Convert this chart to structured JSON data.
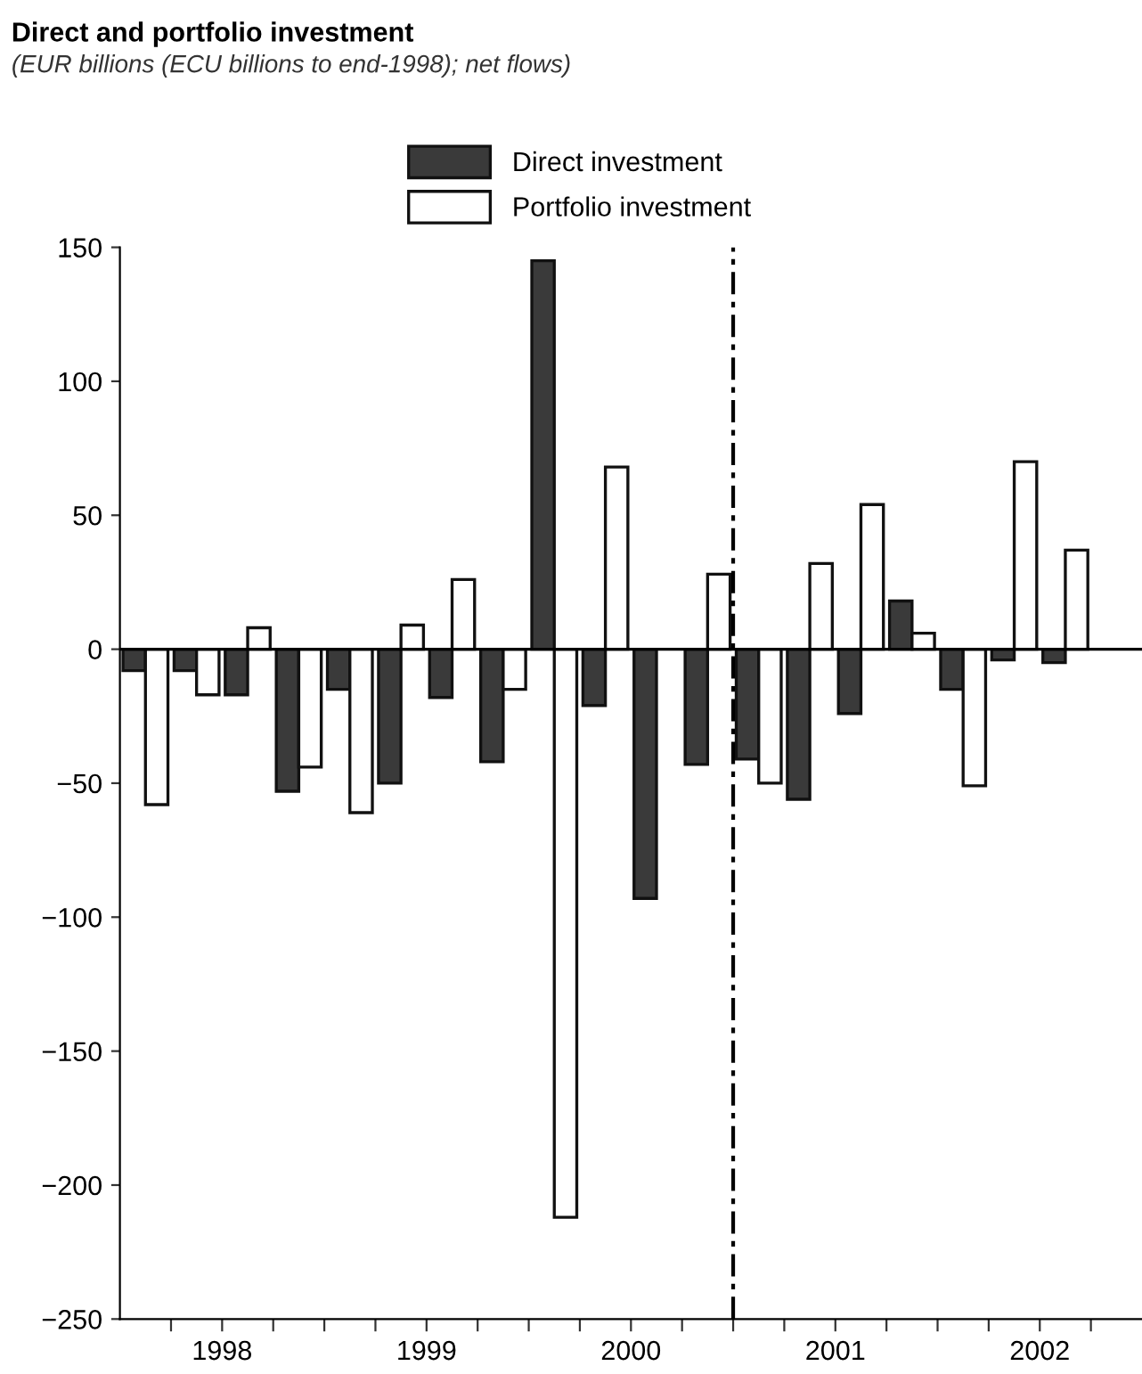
{
  "chart_data": {
    "type": "bar",
    "title": "Direct and portfolio investment",
    "subtitle": "(EUR billions (ECU billions to end-1998); net flows)",
    "x": [
      1998.125,
      1998.375,
      1998.625,
      1998.875,
      1999.125,
      1999.375,
      1999.625,
      1999.875,
      2000.125,
      2000.375,
      2000.625,
      2000.875,
      2001.125,
      2001.375,
      2001.625,
      2001.875,
      2002.125,
      2002.375,
      2002.625
    ],
    "series": [
      {
        "name": "Direct investment",
        "color": "#3a3a3a",
        "values": [
          -8,
          -8,
          -17,
          -53,
          -15,
          -50,
          -18,
          -42,
          145,
          -21,
          -93,
          -43,
          -41,
          -56,
          -24,
          18,
          -15,
          -4,
          -5
        ]
      },
      {
        "name": "Portfolio investment",
        "color": "#ffffff",
        "values": [
          -58,
          -17,
          8,
          -44,
          -61,
          9,
          26,
          -15,
          -212,
          68,
          null,
          28,
          -50,
          32,
          54,
          6,
          -51,
          70,
          37
        ]
      }
    ],
    "xlim": [
      1998,
      2003
    ],
    "xticks": [
      {
        "value": 1998.25,
        "label": null
      },
      {
        "value": 1998.5,
        "label": "1998"
      },
      {
        "value": 1998.75,
        "label": null
      },
      {
        "value": 1999,
        "label": null
      },
      {
        "value": 1999.25,
        "label": null
      },
      {
        "value": 1999.5,
        "label": "1999"
      },
      {
        "value": 1999.75,
        "label": null
      },
      {
        "value": 2000,
        "label": null
      },
      {
        "value": 2000.25,
        "label": null
      },
      {
        "value": 2000.5,
        "label": "2000"
      },
      {
        "value": 2000.75,
        "label": null
      },
      {
        "value": 2001,
        "label": null
      },
      {
        "value": 2001.25,
        "label": null
      },
      {
        "value": 2001.5,
        "label": "2001"
      },
      {
        "value": 2001.75,
        "label": null
      },
      {
        "value": 2002,
        "label": null
      },
      {
        "value": 2002.25,
        "label": null
      },
      {
        "value": 2002.5,
        "label": "2002"
      },
      {
        "value": 2002.75,
        "label": null
      }
    ],
    "ylim": [
      -250,
      150
    ],
    "yticks": [
      -250,
      -200,
      -150,
      -100,
      -50,
      0,
      50,
      100,
      150
    ],
    "ref_lines": [
      {
        "axis": "y",
        "value": 0,
        "color": "#000000",
        "line_style": "solid"
      },
      {
        "axis": "x",
        "value": 2001,
        "color": "#000000",
        "line_style": "dashed"
      }
    ],
    "grid": false,
    "legend": "top"
  }
}
